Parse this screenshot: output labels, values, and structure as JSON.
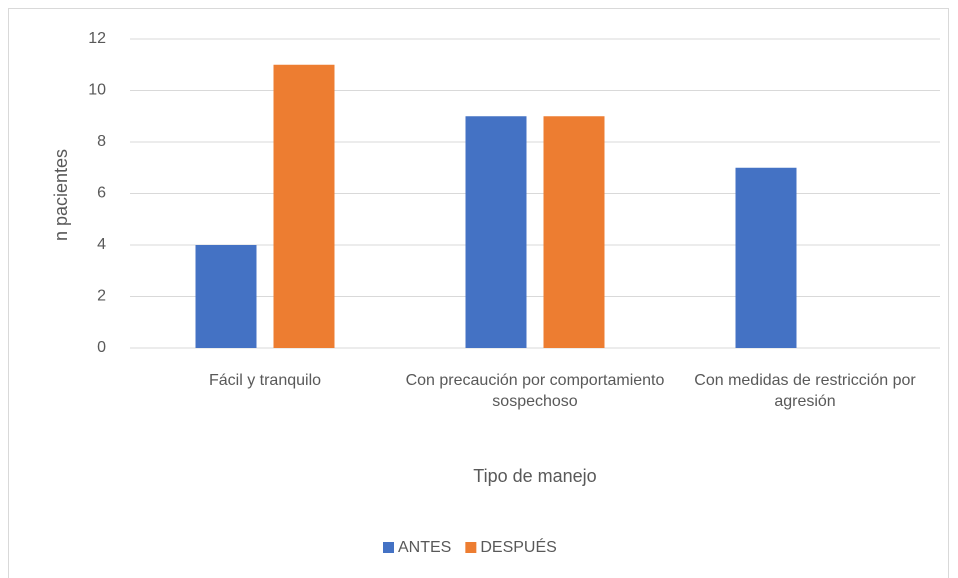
{
  "chart_data": {
    "type": "bar",
    "categories": [
      "Fácil y tranquilo",
      "Con precaución por comportamiento sospechoso",
      "Con medidas de restricción por agresión"
    ],
    "series": [
      {
        "name": "ANTES",
        "color": "#4472c4",
        "values": [
          4,
          9,
          7
        ]
      },
      {
        "name": "DESPUÉS",
        "color": "#ed7d31",
        "values": [
          11,
          9,
          0
        ]
      }
    ],
    "ylim": [
      0,
      12
    ],
    "yticks": [
      0,
      2,
      4,
      6,
      8,
      10,
      12
    ],
    "grid": true,
    "xlabel": "Tipo de manejo",
    "ylabel": "n pacientes",
    "legend": "bottom"
  }
}
